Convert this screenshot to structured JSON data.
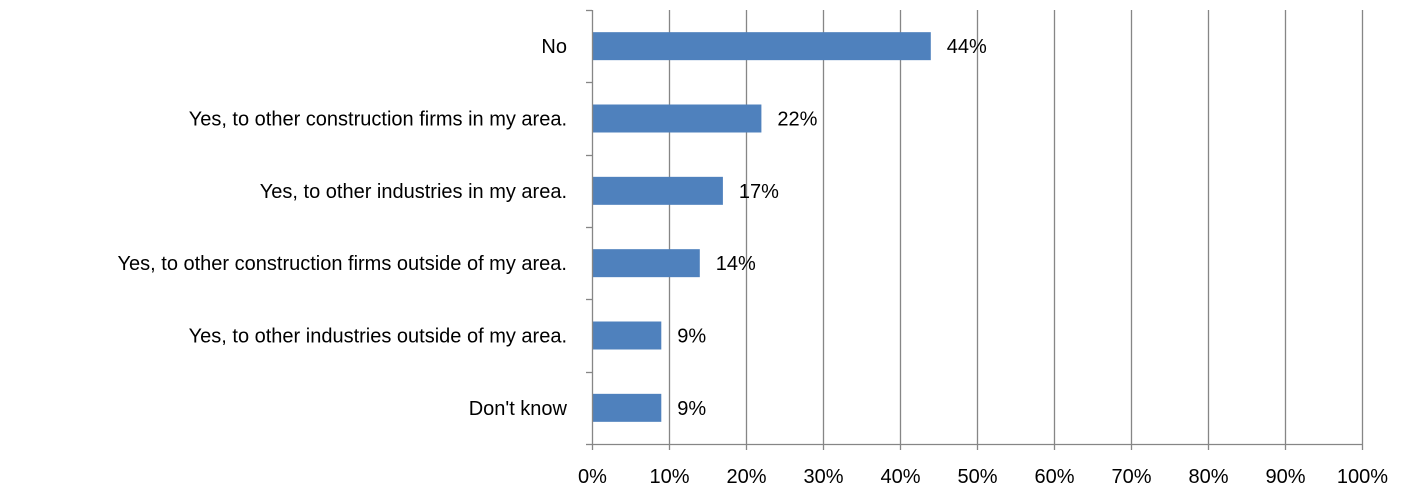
{
  "chart_data": {
    "type": "bar",
    "orientation": "horizontal",
    "categories": [
      "No",
      "Yes, to other construction firms in my area.",
      "Yes, to other industries in my area.",
      "Yes, to other construction firms outside of my area.",
      "Yes, to other industries outside of my area.",
      "Don't know"
    ],
    "values": [
      44,
      22,
      17,
      14,
      9,
      9
    ],
    "value_labels": [
      "44%",
      "22%",
      "17%",
      "14%",
      "9%",
      "9%"
    ],
    "xlim": [
      0,
      100
    ],
    "x_ticks": [
      0,
      10,
      20,
      30,
      40,
      50,
      60,
      70,
      80,
      90,
      100
    ],
    "x_tick_labels": [
      "0%",
      "10%",
      "20%",
      "30%",
      "40%",
      "50%",
      "60%",
      "70%",
      "80%",
      "90%",
      "100%"
    ],
    "title": "",
    "xlabel": "",
    "ylabel": "",
    "grid": "vertical",
    "legend": "none",
    "bar_color": "#4F81BD",
    "gridline_color": "#868686"
  }
}
